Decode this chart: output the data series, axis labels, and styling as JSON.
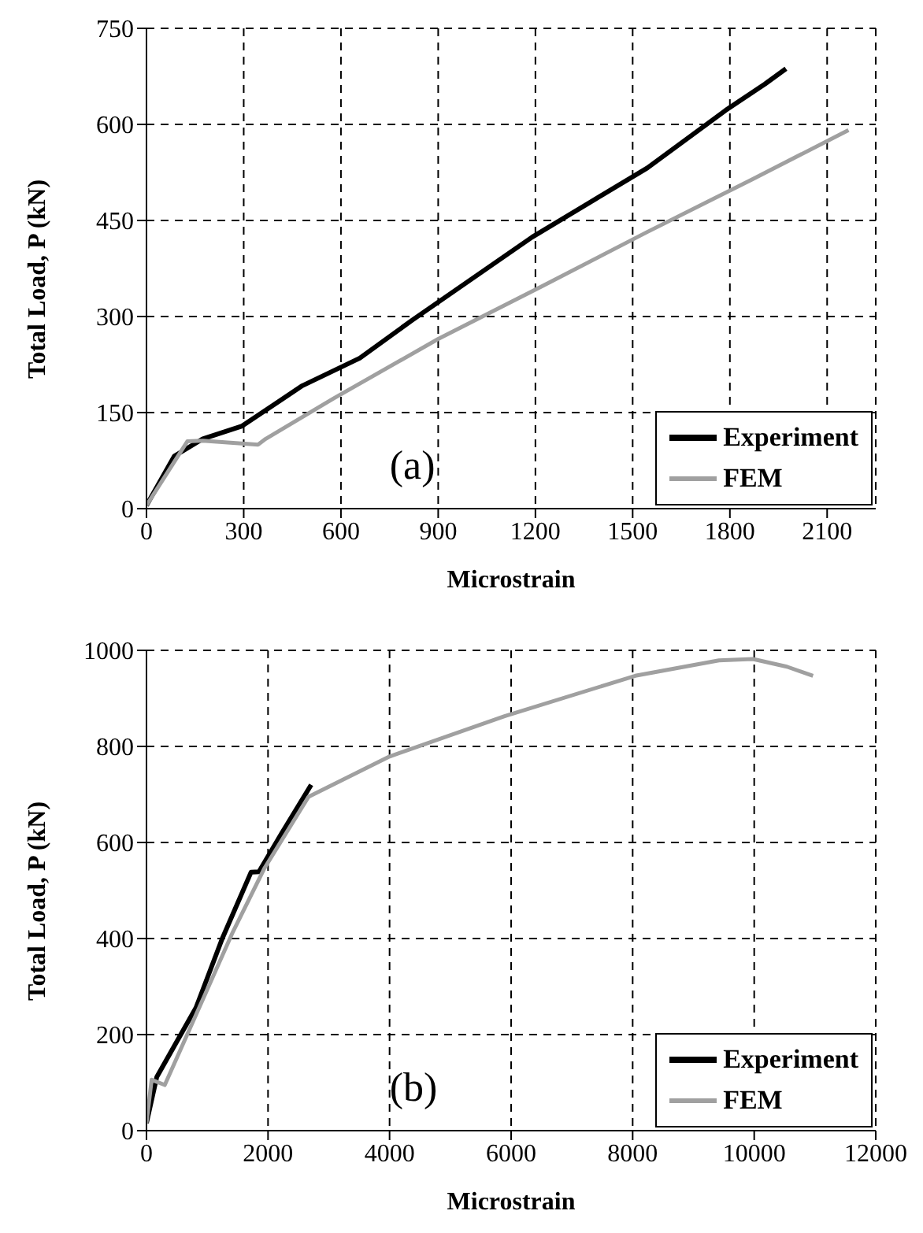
{
  "chart_data": [
    {
      "type": "line",
      "xlabel": "Microstrain",
      "ylabel": "Total Load, P (kN)",
      "annotations": [
        "(a)"
      ],
      "xlim": [
        0,
        2250
      ],
      "xticks": [
        0,
        300,
        600,
        900,
        1200,
        1500,
        1800,
        2100
      ],
      "ylim": [
        0,
        750
      ],
      "yticks": [
        0,
        150,
        300,
        450,
        600,
        750
      ],
      "grid": true,
      "legend": "bottom right",
      "marker": "none",
      "line_style": "solid",
      "series": [
        {
          "name": "Experiment",
          "color": "#000000",
          "x": [
            0,
            86,
            174,
            295,
            481,
            658,
            819,
            1190,
            1545,
            1787,
            1908,
            1973
          ],
          "values": [
            5,
            82,
            109,
            129,
            192,
            235,
            294,
            424,
            532,
            622,
            663,
            687
          ]
        },
        {
          "name": "FEM",
          "color": "#a0a0a0",
          "x": [
            0,
            126,
            174,
            344,
            368,
            577,
            900,
            1223,
            1545,
            1868,
            2166
          ],
          "values": [
            5,
            105,
            106,
            100,
            109,
            172,
            265,
            348,
            432,
            514,
            591
          ]
        }
      ]
    },
    {
      "type": "line",
      "xlabel": "Microstrain",
      "ylabel": "Total Load, P (kN)",
      "annotations": [
        "(b)"
      ],
      "xlim": [
        0,
        12000
      ],
      "xticks": [
        0,
        2000,
        4000,
        6000,
        8000,
        10000,
        12000
      ],
      "ylim": [
        0,
        1000
      ],
      "yticks": [
        0,
        200,
        400,
        600,
        800,
        1000
      ],
      "grid": true,
      "legend": "bottom right",
      "marker": "none",
      "line_style": "solid",
      "series": [
        {
          "name": "Experiment",
          "color": "#000000",
          "x": [
            0,
            170,
            815,
            1247,
            1720,
            1850,
            2219,
            2710
          ],
          "values": [
            16,
            112,
            256,
            400,
            538,
            539,
            618,
            720
          ]
        },
        {
          "name": "FEM",
          "color": "#a0a0a0",
          "x": [
            0,
            85,
            301,
            1419,
            1935,
            2666,
            4000,
            5892,
            8043,
            9419,
            9978,
            10538,
            10968
          ],
          "values": [
            16,
            106,
            95,
            413,
            545,
            695,
            779,
            863,
            947,
            979,
            982,
            966,
            947
          ]
        }
      ]
    }
  ]
}
